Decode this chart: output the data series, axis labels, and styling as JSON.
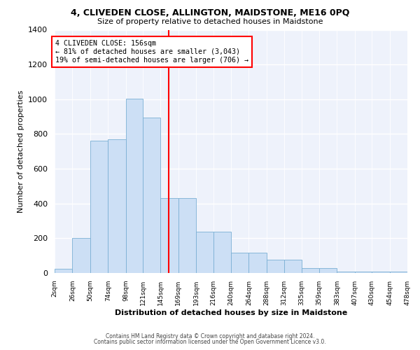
{
  "title": "4, CLIVEDEN CLOSE, ALLINGTON, MAIDSTONE, ME16 0PQ",
  "subtitle": "Size of property relative to detached houses in Maidstone",
  "xlabel": "Distribution of detached houses by size in Maidstone",
  "ylabel": "Number of detached properties",
  "bar_color": "#ccdff5",
  "bar_edge_color": "#7aafd4",
  "background_color": "#eef2fb",
  "grid_color": "#ffffff",
  "property_line_x": 156,
  "property_line_color": "red",
  "annotation_text": "4 CLIVEDEN CLOSE: 156sqm\n← 81% of detached houses are smaller (3,043)\n19% of semi-detached houses are larger (706) →",
  "footnote1": "Contains HM Land Registry data © Crown copyright and database right 2024.",
  "footnote2": "Contains public sector information licensed under the Open Government Licence v3.0.",
  "bin_edges": [
    2,
    26,
    50,
    74,
    98,
    121,
    145,
    169,
    193,
    216,
    240,
    264,
    288,
    312,
    335,
    359,
    383,
    407,
    430,
    454,
    478
  ],
  "bin_labels": [
    "2sqm",
    "26sqm",
    "50sqm",
    "74sqm",
    "98sqm",
    "121sqm",
    "145sqm",
    "169sqm",
    "193sqm",
    "216sqm",
    "240sqm",
    "264sqm",
    "288sqm",
    "312sqm",
    "335sqm",
    "359sqm",
    "383sqm",
    "407sqm",
    "430sqm",
    "454sqm",
    "478sqm"
  ],
  "counts": [
    25,
    200,
    760,
    770,
    1005,
    895,
    430,
    430,
    238,
    238,
    115,
    115,
    75,
    75,
    28,
    28,
    10,
    10,
    8,
    8
  ],
  "ylim": [
    0,
    1400
  ],
  "yticks": [
    0,
    200,
    400,
    600,
    800,
    1000,
    1200,
    1400
  ]
}
